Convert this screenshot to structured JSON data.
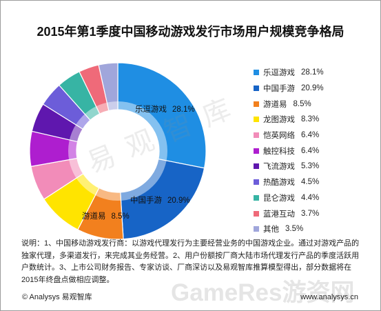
{
  "chart_data": {
    "type": "pie",
    "donut": true,
    "title": "2015年第1季度中国移动游戏发行市场用户规模竞争格局",
    "legend_position": "right",
    "slices": [
      {
        "label": "乐逗游戏",
        "value": 28.1,
        "percent": "28.1%",
        "color": "#1F8EE3"
      },
      {
        "label": "中国手游",
        "value": 20.9,
        "percent": "20.9%",
        "color": "#1764C6"
      },
      {
        "label": "游道易",
        "value": 8.5,
        "percent": "8.5%",
        "color": "#F2801E"
      },
      {
        "label": "龙图游戏",
        "value": 8.3,
        "percent": "8.3%",
        "color": "#FFE400"
      },
      {
        "label": "恺英网络",
        "value": 6.4,
        "percent": "6.4%",
        "color": "#F28CB9"
      },
      {
        "label": "触控科技",
        "value": 6.4,
        "percent": "6.4%",
        "color": "#AE1ECF"
      },
      {
        "label": "飞流游戏",
        "value": 5.3,
        "percent": "5.3%",
        "color": "#5F17AE"
      },
      {
        "label": "热酷游戏",
        "value": 4.5,
        "percent": "4.5%",
        "color": "#6C5DD9"
      },
      {
        "label": "昆仑游戏",
        "value": 4.4,
        "percent": "4.4%",
        "color": "#37B4A4"
      },
      {
        "label": "蓝港互动",
        "value": 3.7,
        "percent": "3.7%",
        "color": "#EF6A79"
      },
      {
        "label": "其他",
        "value": 3.5,
        "percent": "3.5%",
        "color": "#A0A6DB"
      }
    ]
  },
  "note": {
    "lines": [
      "说明：1、中国移动游戏发行商：以游戏代理发行为主要经营业务的中国游戏企业。通过对游戏产品的",
      "独家代理，多渠道发行，来完成其业务经营。2、用户份额按厂商大陆市场代理发行产品的季度活跃用",
      "户数统计。3、上市公司财务报告、专家访谈、厂商深访以及易观智库推算模型得出，部分数据将在",
      "2015年终盘点做相应调整。"
    ]
  },
  "footer": {
    "copyright": "© Analysys 易观智库",
    "url": "www.analysys.cn"
  },
  "watermarks": {
    "chart": "易观智库",
    "site": "GameRes游资网"
  }
}
